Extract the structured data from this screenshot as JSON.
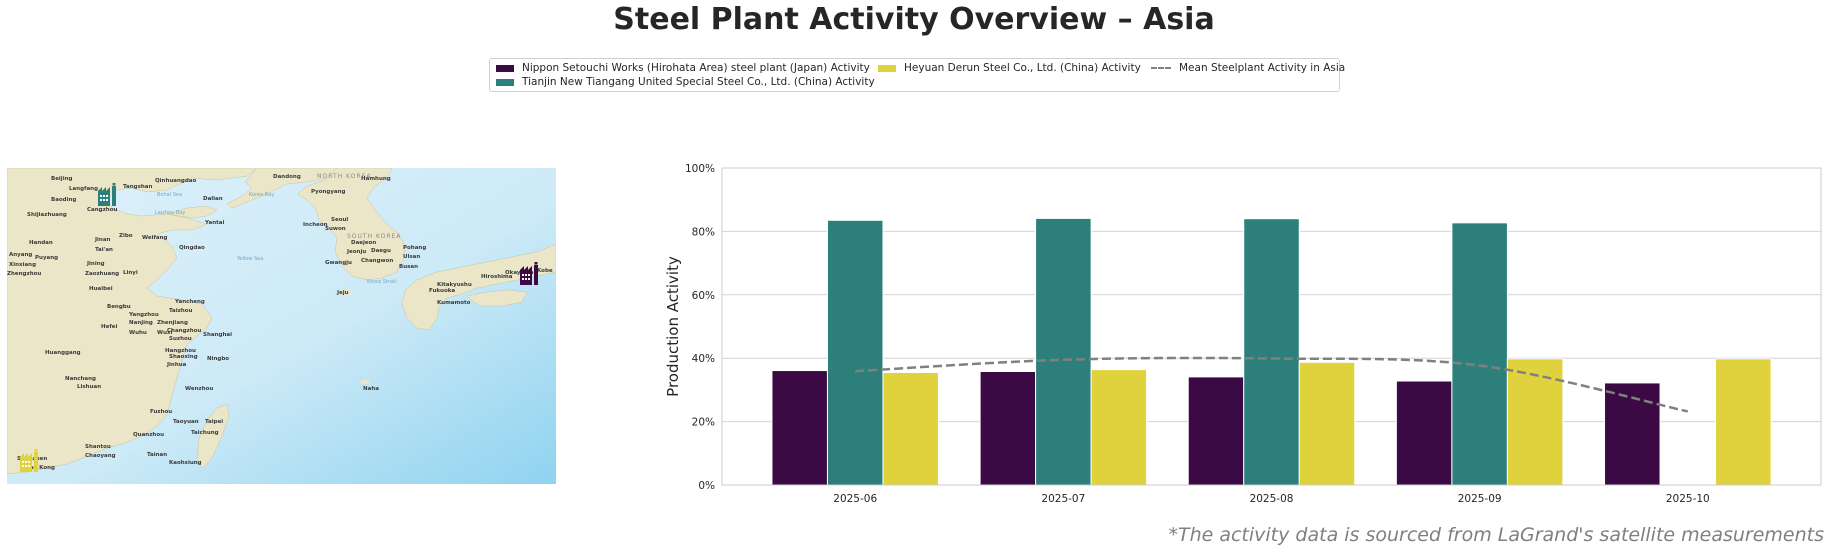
{
  "title": "Steel Plant Activity Overview – Asia",
  "footnote": "*The activity data is sourced from LaGrand's satellite measurements",
  "legend": {
    "items": [
      {
        "label": "Nippon Setouchi Works (Hirohata Area) steel plant (Japan) Activity",
        "color": "#3b0a45",
        "kind": "bar"
      },
      {
        "label": "Tianjin New Tiangang United Special Steel Co., Ltd. (China) Activity",
        "color": "#2d7f7b",
        "kind": "bar"
      },
      {
        "label": "Heyuan Derun Steel Co., Ltd. (China) Activity",
        "color": "#e0d23c",
        "kind": "bar"
      },
      {
        "label": "Mean Steelplant Activity in Asia",
        "color": "#808080",
        "kind": "dashed-line"
      }
    ]
  },
  "map": {
    "cities": [
      "Beijing",
      "Langfang",
      "Tangshan",
      "Qinhuangdao",
      "Baoding",
      "Cangzhou",
      "Shijiazhuang",
      "Dalian",
      "Dandong",
      "Pyongyang",
      "Hamhung",
      "Yantai",
      "Weifang",
      "Zibo",
      "Jinan",
      "Tai'an",
      "Qingdao",
      "Handan",
      "Anyang",
      "Puyang",
      "Xinxiang",
      "Zhengzhou",
      "Jining",
      "Zaozhuang",
      "Linyi",
      "Huaibei",
      "Bengbu",
      "Yancheng",
      "Taizhou",
      "Yangzhou",
      "Nanjing",
      "Zhenjiang",
      "Changzhou",
      "Hefei",
      "Wuhu",
      "Wuxi",
      "Suzhou",
      "Shanghai",
      "Huanggang",
      "Hangzhou",
      "Shaoxing",
      "Ningbo",
      "Jinhua",
      "Nanchang",
      "Lishuan",
      "Wenzhou",
      "Fuzhou",
      "Quanzhou",
      "Shantou",
      "Chaoyang",
      "Shenzhen",
      "Hong Kong",
      "Taoyuan",
      "Taipei",
      "Taichung",
      "Tainan",
      "Kaohsiung",
      "Incheon",
      "Seoul",
      "Suwon",
      "Daejeon",
      "Daegu",
      "Jeonju",
      "Gwangju",
      "Changwon",
      "Busan",
      "Ulsan",
      "Pohang",
      "Jeju",
      "Kitakyushu",
      "Fukuoka",
      "Kumamoto",
      "Hiroshima",
      "Okayama",
      "Kobe",
      "Naha"
    ],
    "seas": [
      "Bohai Sea",
      "Laizhou Bay",
      "Korea Bay",
      "Yellow Sea",
      "Korea Strait"
    ],
    "countries": [
      "NORTH KOREA",
      "SOUTH KOREA"
    ],
    "markers": [
      {
        "name": "Tianjin New Tiangang United Special Steel Co., Ltd.",
        "icon": "factory-icon",
        "color": "#2d7f7b"
      },
      {
        "name": "Nippon Setouchi Works (Hirohata Area)",
        "icon": "factory-icon",
        "color": "#3b0a45"
      },
      {
        "name": "Heyuan Derun Steel Co., Ltd.",
        "icon": "factory-icon",
        "color": "#e0d23c"
      }
    ]
  },
  "chart_data": {
    "type": "bar",
    "title": "Steel Plant Activity Overview – Asia",
    "xlabel": "",
    "ylabel": "Production Activity",
    "ylim": [
      0,
      100
    ],
    "yticks": [
      "0%",
      "20%",
      "40%",
      "60%",
      "80%",
      "100%"
    ],
    "ytick_values": [
      0,
      20,
      40,
      60,
      80,
      100
    ],
    "grid": true,
    "legend_position": "top-center",
    "categories": [
      "2025-06",
      "2025-07",
      "2025-08",
      "2025-09",
      "2025-10"
    ],
    "series": [
      {
        "name": "Nippon Setouchi Works (Hirohata Area) steel plant (Japan) Activity",
        "color": "#3b0a45",
        "values": [
          36.1,
          35.8,
          34.1,
          32.8,
          32.2
        ]
      },
      {
        "name": "Tianjin New Tiangang United Special Steel Co., Ltd. (China) Activity",
        "color": "#2d7f7b",
        "values": [
          83.5,
          84.1,
          84.0,
          82.7,
          null
        ]
      },
      {
        "name": "Heyuan Derun Steel Co., Ltd. (China) Activity",
        "color": "#e0d23c",
        "values": [
          35.5,
          36.4,
          38.7,
          39.8,
          39.8
        ]
      }
    ],
    "line_series": {
      "name": "Mean Steelplant Activity in Asia",
      "color": "#808080",
      "style": "dashed",
      "smooth": true,
      "values": [
        35.9,
        39.5,
        39.9,
        37.7,
        23.2
      ]
    }
  }
}
